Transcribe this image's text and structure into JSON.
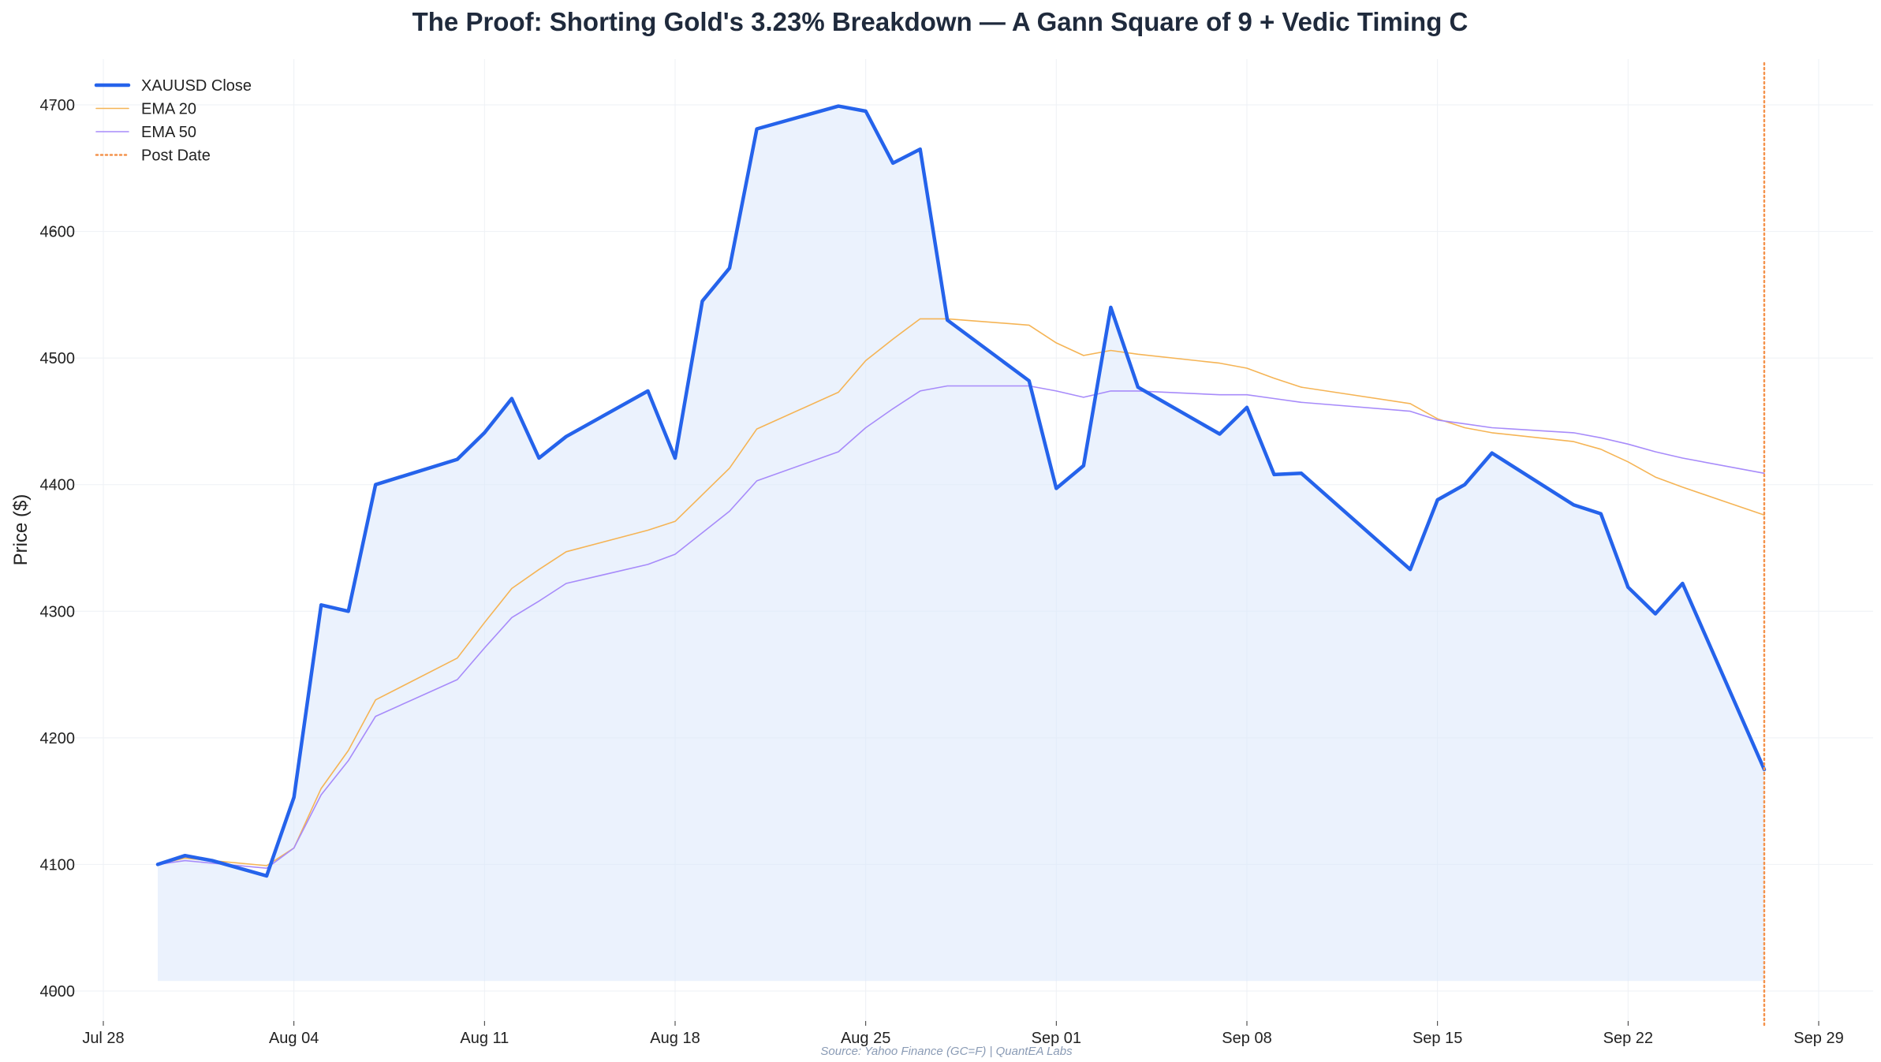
{
  "chart_data": {
    "type": "line",
    "title": "The Proof: Shorting Gold's 3.23% Breakdown — A Gann Square of 9 + Vedic Timing C",
    "xlabel": "",
    "ylabel": "Price ($)",
    "source": "Source: Yahoo Finance (GC=F) | QuantEA Labs",
    "xlim": [
      "2025-07-28",
      "2025-09-29"
    ],
    "ylim": [
      3970,
      4735
    ],
    "x_ticks": [
      {
        "date": "2025-07-28",
        "label": "Jul 28"
      },
      {
        "date": "2025-08-04",
        "label": "Aug 04"
      },
      {
        "date": "2025-08-11",
        "label": "Aug 11"
      },
      {
        "date": "2025-08-18",
        "label": "Aug 18"
      },
      {
        "date": "2025-08-25",
        "label": "Aug 25"
      },
      {
        "date": "2025-09-01",
        "label": "Sep 01"
      },
      {
        "date": "2025-09-08",
        "label": "Sep 08"
      },
      {
        "date": "2025-09-15",
        "label": "Sep 15"
      },
      {
        "date": "2025-09-22",
        "label": "Sep 22"
      },
      {
        "date": "2025-09-29",
        "label": "Sep 29"
      }
    ],
    "y_ticks": [
      4000,
      4100,
      4200,
      4300,
      4400,
      4500,
      4600,
      4700
    ],
    "grid": true,
    "legend_position": "top-left",
    "fill_baseline": 4008,
    "x": [
      "2025-07-30",
      "2025-07-31",
      "2025-08-01",
      "2025-08-03",
      "2025-08-04",
      "2025-08-05",
      "2025-08-06",
      "2025-08-07",
      "2025-08-10",
      "2025-08-11",
      "2025-08-12",
      "2025-08-13",
      "2025-08-14",
      "2025-08-17",
      "2025-08-18",
      "2025-08-19",
      "2025-08-20",
      "2025-08-21",
      "2025-08-24",
      "2025-08-25",
      "2025-08-26",
      "2025-08-27",
      "2025-08-28",
      "2025-08-31",
      "2025-09-01",
      "2025-09-02",
      "2025-09-03",
      "2025-09-04",
      "2025-09-07",
      "2025-09-08",
      "2025-09-09",
      "2025-09-10",
      "2025-09-14",
      "2025-09-15",
      "2025-09-16",
      "2025-09-17",
      "2025-09-20",
      "2025-09-21",
      "2025-09-22",
      "2025-09-23",
      "2025-09-24",
      "2025-09-27"
    ],
    "series": [
      {
        "name": "XAUUSD Close",
        "color": "#2563eb",
        "style": "solid",
        "values": [
          4100,
          4107,
          4103,
          4091,
          4153,
          4305,
          4300,
          4400,
          4420,
          4441,
          4468,
          4421,
          4438,
          4474,
          4421,
          4545,
          4571,
          4681,
          4699,
          4695,
          4654,
          4665,
          4530,
          4482,
          4397,
          4415,
          4540,
          4477,
          4440,
          4461,
          4408,
          4409,
          4333,
          4388,
          4400,
          4425,
          4384,
          4377,
          4319,
          4298,
          4322,
          4175
        ]
      },
      {
        "name": "EMA 20",
        "color": "#f5b455",
        "style": "solid",
        "values": [
          4100,
          4105,
          4103,
          4099,
          4113,
          4160,
          4190,
          4230,
          4263,
          4291,
          4318,
          4333,
          4347,
          4364,
          4371,
          4392,
          4413,
          4444,
          4473,
          4498,
          4515,
          4531,
          4531,
          4526,
          4512,
          4502,
          4506,
          4503,
          4496,
          4492,
          4484,
          4477,
          4464,
          4452,
          4445,
          4441,
          4434,
          4428,
          4418,
          4406,
          4398,
          4376
        ]
      },
      {
        "name": "EMA 50",
        "color": "#a78bfa",
        "style": "solid",
        "values": [
          4100,
          4103,
          4101,
          4097,
          4113,
          4155,
          4182,
          4217,
          4246,
          4271,
          4295,
          4308,
          4322,
          4337,
          4345,
          4362,
          4379,
          4403,
          4426,
          4445,
          4460,
          4474,
          4478,
          4478,
          4474,
          4469,
          4474,
          4474,
          4471,
          4471,
          4468,
          4465,
          4458,
          4451,
          4448,
          4445,
          4441,
          4437,
          4432,
          4426,
          4421,
          4409
        ]
      }
    ],
    "post_date": {
      "name": "Post Date",
      "date": "2025-09-27",
      "color": "#f4934d",
      "style": "dotted"
    }
  }
}
